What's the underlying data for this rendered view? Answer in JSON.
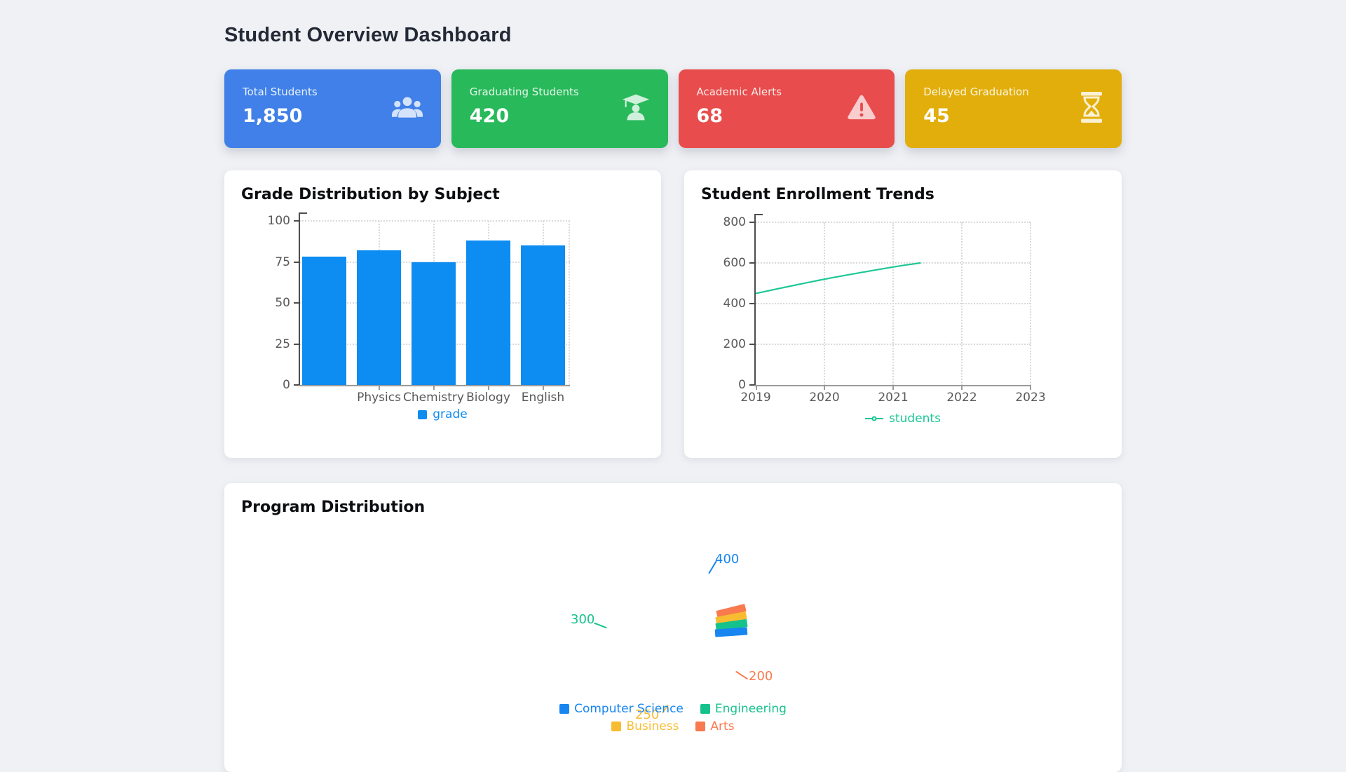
{
  "page": {
    "title": "Student Overview Dashboard"
  },
  "stat_cards": [
    {
      "label": "Total Students",
      "value": "1,850",
      "color": "#4080e8",
      "icon": "users-icon"
    },
    {
      "label": "Graduating Students",
      "value": "420",
      "color": "#28b95a",
      "icon": "graduate-cap-icon"
    },
    {
      "label": "Academic Alerts",
      "value": "68",
      "color": "#e84c4c",
      "icon": "warning-icon"
    },
    {
      "label": "Delayed Graduation",
      "value": "45",
      "color": "#e2ae0b",
      "icon": "hourglass-icon"
    }
  ],
  "chart_data": [
    {
      "type": "bar",
      "title": "Grade Distribution by Subject",
      "series": [
        {
          "name": "grade",
          "values": [
            78,
            82,
            75,
            88,
            85
          ]
        }
      ],
      "x_tick_labels": [
        "Physics",
        "Chemistry",
        "Biology",
        "English"
      ],
      "note": "5 bars are drawn; the first bar has no visible tick label",
      "ylim": [
        0,
        100
      ],
      "yticks": [
        0,
        25,
        50,
        75,
        100
      ],
      "color": "#0d8cf2",
      "grid": true,
      "legend_position": "bottom"
    },
    {
      "type": "line",
      "title": "Student Enrollment Trends",
      "series": [
        {
          "name": "students",
          "x": [
            2019,
            2020,
            2021
          ],
          "values": [
            450,
            520,
            580
          ]
        }
      ],
      "line_ends_at": {
        "x": 2021.4,
        "y": 600
      },
      "xticks": [
        2019,
        2020,
        2021,
        2022,
        2023
      ],
      "ylim": [
        0,
        800
      ],
      "yticks": [
        0,
        200,
        400,
        600,
        800
      ],
      "color": "#1cc795",
      "grid": true,
      "legend_position": "bottom"
    },
    {
      "type": "pie",
      "title": "Program Distribution",
      "labels": [
        "Computer Science",
        "Engineering",
        "Business",
        "Arts"
      ],
      "values": [
        400,
        300,
        250,
        200
      ],
      "colors": [
        "#1786f0",
        "#16c28c",
        "#f8bc33",
        "#f87a4e"
      ],
      "legend_position": "bottom",
      "rendering": "slices collapsed into small fanned wedges with callout value labels"
    }
  ]
}
